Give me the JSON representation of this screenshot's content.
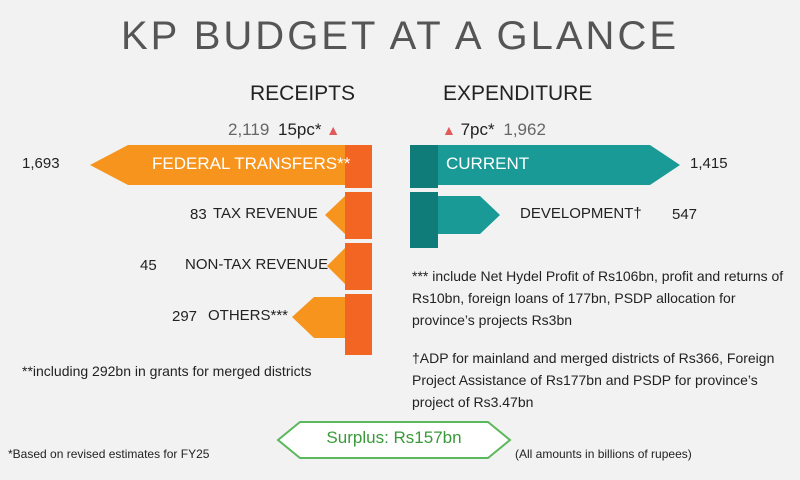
{
  "title": "KP BUDGET AT A GLANCE",
  "colors": {
    "orange": "#f7941d",
    "orange_dark": "#f26522",
    "teal": "#1a9a96",
    "teal_dark": "#0f7c7a",
    "green": "#5cb85c",
    "red": "#e05a5a"
  },
  "receipts": {
    "header": "RECEIPTS",
    "total": "2,119",
    "change": "15pc*",
    "arrow": "up-triangle-icon"
  },
  "expenditure": {
    "header": "EXPENDITURE",
    "total": "1,962",
    "change": "7pc*",
    "arrow": "up-triangle-icon"
  },
  "chart_data": {
    "type": "bar",
    "title": "KP BUDGET AT A GLANCE",
    "units": "billions of rupees",
    "receipts": {
      "total": 2119,
      "change_pct": 15,
      "categories": [
        "FEDERAL TRANSFERS**",
        "TAX REVENUE",
        "NON-TAX REVENUE",
        "OTHERS***"
      ],
      "values": [
        1693,
        83,
        45,
        297
      ]
    },
    "expenditure": {
      "total": 1962,
      "change_pct": 7,
      "categories": [
        "CURRENT",
        "DEVELOPMENT†"
      ],
      "values": [
        1415,
        547
      ]
    },
    "surplus": 157
  },
  "receipt_items": [
    {
      "value": "1,693",
      "label": "FEDERAL TRANSFERS**"
    },
    {
      "value": "83",
      "label": "TAX REVENUE"
    },
    {
      "value": "45",
      "label": "NON-TAX REVENUE"
    },
    {
      "value": "297",
      "label": "OTHERS***"
    }
  ],
  "expenditure_items": [
    {
      "value": "1,415",
      "label": "CURRENT"
    },
    {
      "value": "547",
      "label": "DEVELOPMENT†"
    }
  ],
  "notes": {
    "federal": "**including 292bn in grants for merged districts",
    "hydel": "*** include Net Hydel Profit of Rs106bn, profit and returns of Rs10bn, foreign loans of 177bn, PSDP allocation for province’s projects Rs3bn",
    "adp": "†ADP for mainland and merged districts of Rs366, Foreign Project Assistance of Rs177bn and PSDP for province’s project of Rs3.47bn"
  },
  "footer": {
    "left": "*Based on revised estimates for FY25",
    "surplus": "Surplus: Rs157bn",
    "right": "(All amounts in billions of rupees)"
  }
}
